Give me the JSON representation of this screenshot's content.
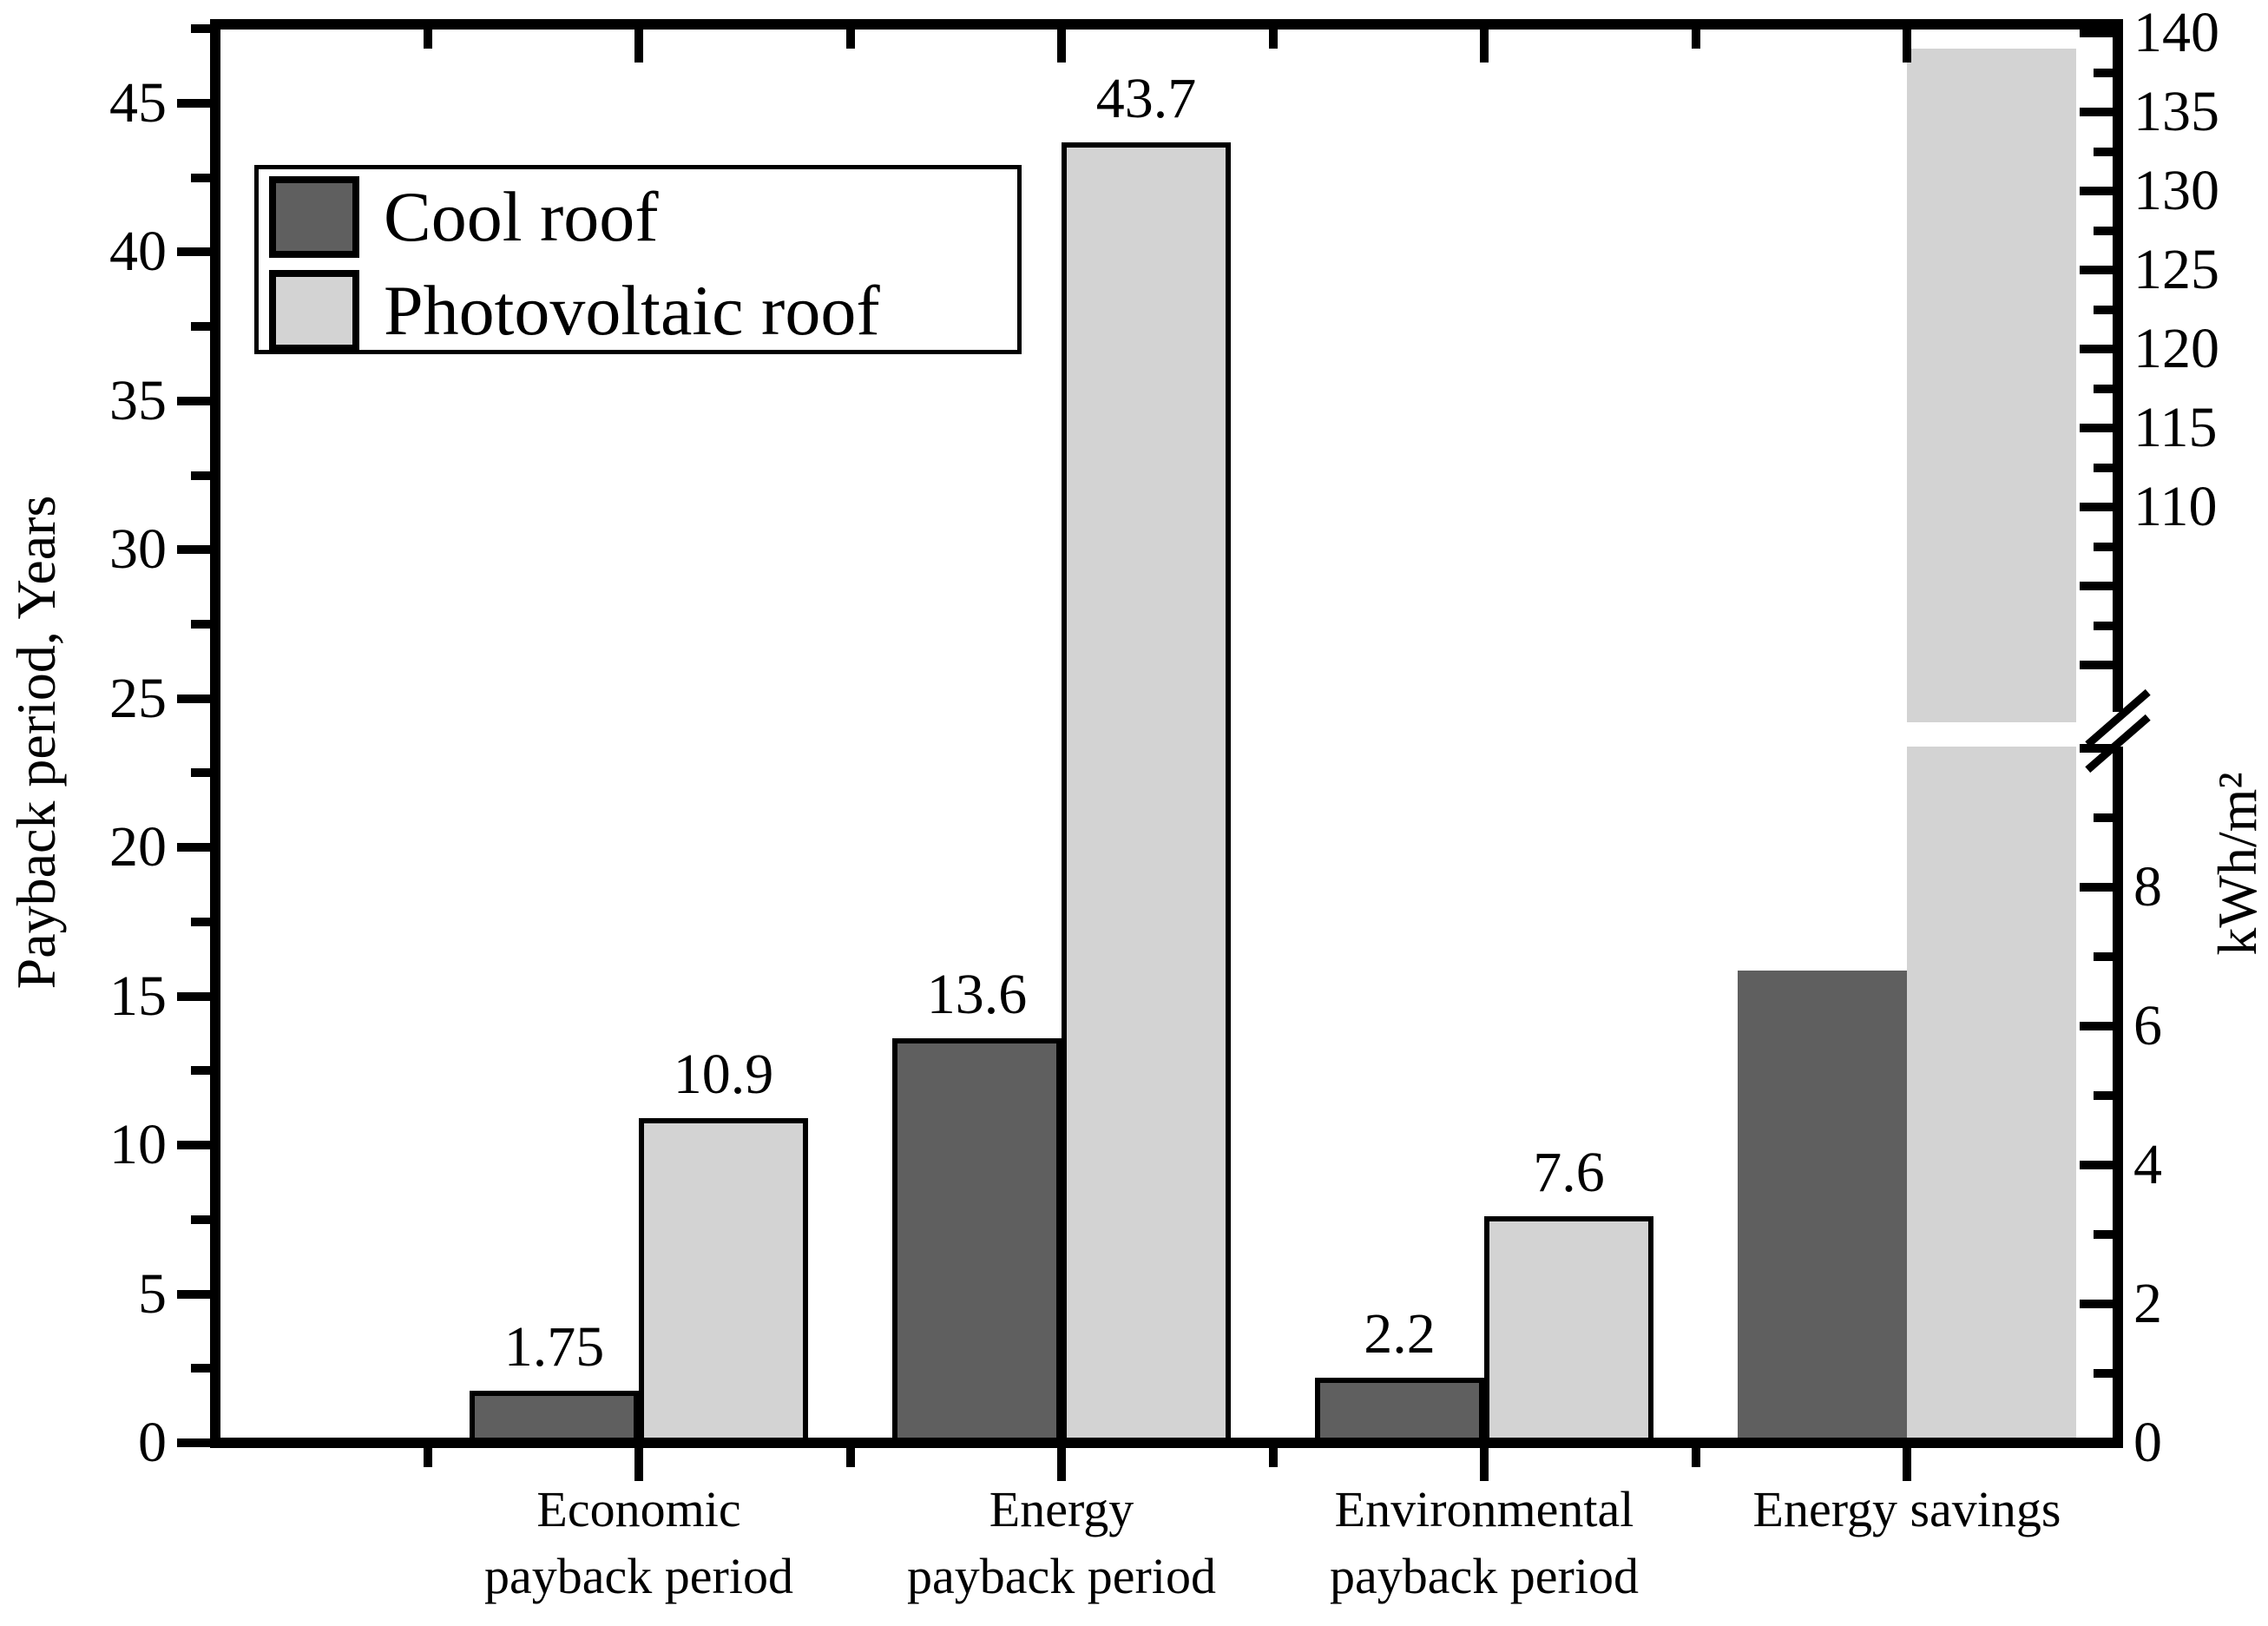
{
  "chart_data": {
    "type": "bar",
    "title": "",
    "categories": [
      "Economic payback period",
      "Energy payback period",
      "Environmental payback period",
      "Energy savings"
    ],
    "category_lines": [
      [
        "Economic",
        "payback period"
      ],
      [
        "Energy",
        "payback period"
      ],
      [
        "Environmental",
        "payback period"
      ],
      [
        "Energy savings"
      ]
    ],
    "series": [
      {
        "name": "Cool roof",
        "color": "#5f5f5f",
        "outline": "#000000",
        "values": [
          1.75,
          13.6,
          2.2,
          6.8
        ],
        "value_axis": [
          "left",
          "left",
          "left",
          "right"
        ],
        "data_labels": [
          "1.75",
          "13.6",
          "2.2",
          null
        ]
      },
      {
        "name": "Photovoltaic roof",
        "color": "#d3d3d3",
        "outline": "#000000",
        "values": [
          10.9,
          43.7,
          7.6,
          139
        ],
        "value_axis": [
          "left",
          "left",
          "left",
          "right"
        ],
        "data_labels": [
          "10.9",
          "43.7",
          "7.6",
          null
        ]
      }
    ],
    "left_axis": {
      "label": "Payback period, Years",
      "min": 0,
      "max": 47.6,
      "major_ticks": [
        0,
        5,
        10,
        15,
        20,
        25,
        30,
        35,
        40,
        45
      ],
      "labeled": [
        0,
        5,
        10,
        15,
        20,
        25,
        30,
        35,
        40,
        45
      ],
      "minor_ticks": [
        2.5,
        7.5,
        12.5,
        17.5,
        22.5,
        27.5,
        32.5,
        37.5,
        42.5,
        47.5
      ]
    },
    "right_axis": {
      "label": "kWh/m²",
      "broken": true,
      "lower": {
        "min": 0,
        "max": 10,
        "major_ticks": [
          0,
          2,
          4,
          6,
          8,
          10
        ],
        "labeled": [
          0,
          2,
          4,
          6,
          8
        ],
        "minor_ticks": [
          1,
          3,
          5,
          7,
          9
        ]
      },
      "upper": {
        "min": 98,
        "max": 140,
        "major_ticks": [
          100,
          105,
          110,
          115,
          120,
          125,
          130,
          135,
          140
        ],
        "labeled": [
          110,
          115,
          120,
          125,
          130,
          135,
          140
        ],
        "minor_ticks": [
          102.5,
          107.5,
          112.5,
          117.5,
          122.5,
          127.5,
          132.5,
          137.5
        ]
      }
    },
    "legend": {
      "position": "top-left",
      "entries": [
        "Cool roof",
        "Photovoltaic roof"
      ]
    },
    "notes": "Energy savings bars read on the right kWh/m² axis; no data labels shown for them (heights ≈6.8 and ≈139, the tall bar crosses the axis break)."
  }
}
